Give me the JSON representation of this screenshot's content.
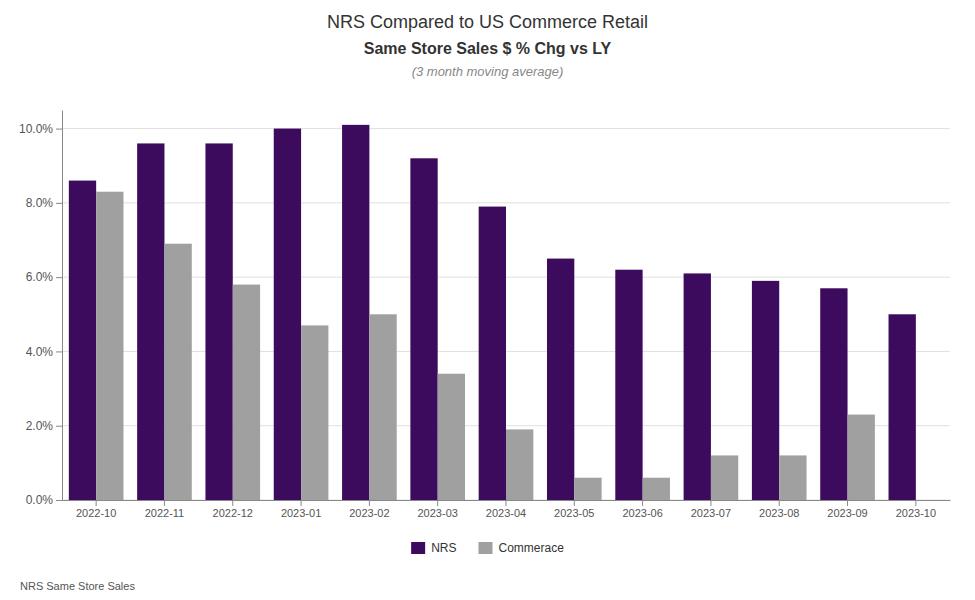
{
  "chart_data": {
    "type": "bar",
    "title": "NRS Compared to US Commerce Retail",
    "subtitle": "Same Store Sales $ % Chg vs LY",
    "annotations": [
      "(3 month moving average)",
      "NRS Same Store Sales"
    ],
    "categories": [
      "2022-10",
      "2022-11",
      "2022-12",
      "2023-01",
      "2023-02",
      "2023-03",
      "2023-04",
      "2023-05",
      "2023-06",
      "2023-07",
      "2023-08",
      "2023-09",
      "2023-10"
    ],
    "series": [
      {
        "name": "NRS",
        "color": "#3d0b5e",
        "values": [
          0.086,
          0.096,
          0.096,
          0.1,
          0.101,
          0.092,
          0.079,
          0.065,
          0.062,
          0.061,
          0.059,
          0.057,
          0.05
        ]
      },
      {
        "name": "Commerace",
        "color": "#a0a0a0",
        "values": [
          0.083,
          0.069,
          0.058,
          0.047,
          0.05,
          0.034,
          0.019,
          0.006,
          0.006,
          0.012,
          0.012,
          0.023,
          null
        ]
      }
    ],
    "ylim": [
      0.0,
      0.105
    ],
    "yticks": [
      {
        "value": 0.0,
        "label": "0.0%"
      },
      {
        "value": 0.02,
        "label": "2.0%"
      },
      {
        "value": 0.04,
        "label": "4.0%"
      },
      {
        "value": 0.06,
        "label": "6.0%"
      },
      {
        "value": 0.08,
        "label": "8.0%"
      },
      {
        "value": 0.1,
        "label": "10.0%"
      }
    ],
    "grid": true,
    "legend": "bottom"
  }
}
